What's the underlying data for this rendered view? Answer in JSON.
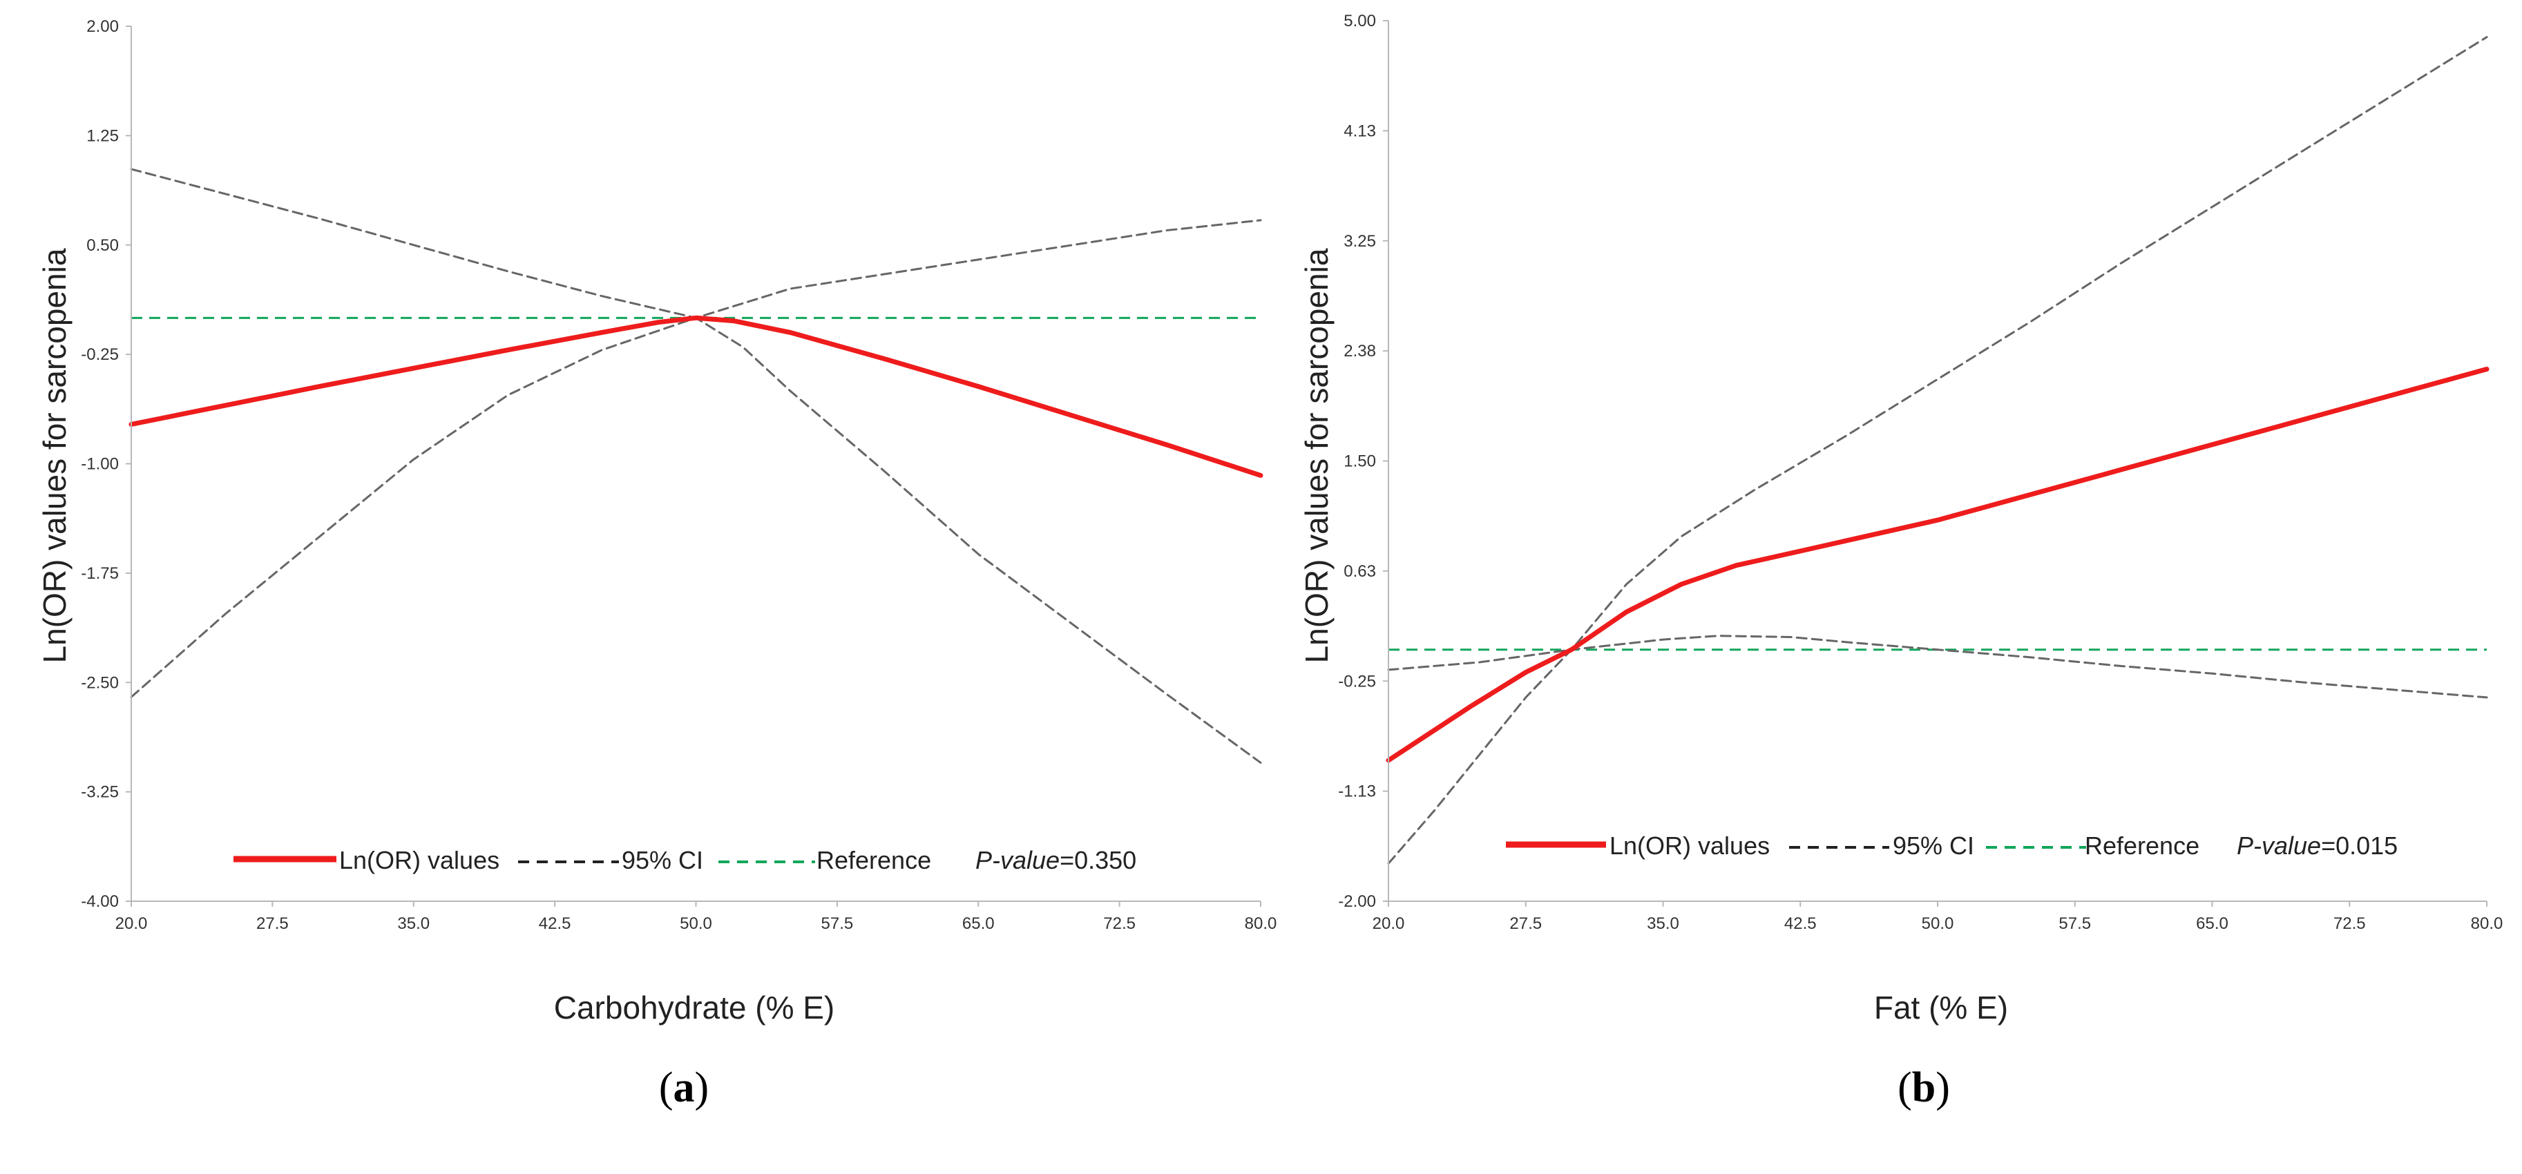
{
  "chart_data": [
    {
      "type": "line",
      "panel_label": "a",
      "xlabel": "Carbohydrate (% E)",
      "ylabel": "Ln(OR) values for sarcopenia",
      "xlim": [
        20.0,
        80.0
      ],
      "ylim": [
        -4.0,
        2.0
      ],
      "x_ticks": [
        "20.0",
        "27.5",
        "35.0",
        "42.5",
        "50.0",
        "57.5",
        "65.0",
        "72.5",
        "80.0"
      ],
      "y_ticks": [
        "2.00",
        "1.25",
        "0.50",
        "-0.25",
        "-1.00",
        "-1.75",
        "-2.50",
        "-3.25",
        "-4.00"
      ],
      "y_tick_values": [
        2.0,
        1.25,
        0.5,
        -0.25,
        -1.0,
        -1.75,
        -2.5,
        -3.25,
        -4.0
      ],
      "reference": 0.0,
      "series": [
        {
          "name": "Ln(OR) values",
          "color": "#ee1c1c",
          "x": [
            20,
            30,
            40,
            45,
            48,
            50,
            52,
            55,
            60,
            65,
            70,
            75,
            80
          ],
          "y": [
            -0.73,
            -0.47,
            -0.22,
            -0.1,
            -0.03,
            0.0,
            -0.02,
            -0.1,
            -0.28,
            -0.47,
            -0.67,
            -0.87,
            -1.08
          ]
        },
        {
          "name": "95% CI upper",
          "color": "#666666",
          "x": [
            20,
            25,
            30,
            35,
            40,
            45,
            50,
            52.5,
            55,
            60,
            65,
            70,
            75,
            80
          ],
          "y": [
            1.02,
            0.85,
            0.68,
            0.5,
            0.32,
            0.15,
            0.0,
            0.1,
            0.2,
            0.3,
            0.4,
            0.5,
            0.6,
            0.67
          ]
        },
        {
          "name": "95% CI lower",
          "color": "#666666",
          "x": [
            20,
            25,
            30,
            35,
            40,
            45,
            50,
            52.5,
            55,
            60,
            65,
            70,
            75,
            80
          ],
          "y": [
            -2.6,
            -2.03,
            -1.5,
            -0.97,
            -0.53,
            -0.22,
            0.0,
            -0.2,
            -0.5,
            -1.05,
            -1.62,
            -2.1,
            -2.58,
            -3.05
          ]
        }
      ],
      "legend": {
        "items": [
          "Ln(OR) values",
          "95% CI",
          "Reference"
        ],
        "pvalue_label": "P-value",
        "pvalue": "=0.350"
      }
    },
    {
      "type": "line",
      "panel_label": "b",
      "xlabel": "Fat (% E)",
      "ylabel": "Ln(OR) values for sarcopenia",
      "xlim": [
        20.0,
        80.0
      ],
      "ylim": [
        -2.0,
        5.0
      ],
      "x_ticks": [
        "20.0",
        "27.5",
        "35.0",
        "42.5",
        "50.0",
        "57.5",
        "65.0",
        "72.5",
        "80.0"
      ],
      "y_ticks": [
        "5.00",
        "4.13",
        "3.25",
        "2.38",
        "1.50",
        "0.63",
        "-0.25",
        "-1.13",
        "-2.00"
      ],
      "y_tick_values": [
        5.0,
        4.125,
        3.25,
        2.375,
        1.5,
        0.625,
        -0.25,
        -1.125,
        -2.0
      ],
      "reference": 0.0,
      "series": [
        {
          "name": "Ln(OR) values",
          "color": "#ee1c1c",
          "x": [
            20,
            24.5,
            27.5,
            30,
            33,
            36,
            39,
            43,
            50,
            60,
            70,
            80
          ],
          "y": [
            -0.88,
            -0.45,
            -0.18,
            0.0,
            0.3,
            0.52,
            0.67,
            0.8,
            1.03,
            1.43,
            1.83,
            2.23
          ]
        },
        {
          "name": "95% CI upper",
          "color": "#666666",
          "x": [
            20,
            22.5,
            25,
            27.5,
            30,
            33,
            36,
            40,
            45,
            50,
            55,
            60,
            65,
            70,
            75,
            80
          ],
          "y": [
            -1.7,
            -1.28,
            -0.83,
            -0.38,
            0.0,
            0.52,
            0.9,
            1.27,
            1.7,
            2.15,
            2.6,
            3.07,
            3.52,
            3.97,
            4.42,
            4.87
          ]
        },
        {
          "name": "95% CI lower",
          "color": "#666666",
          "x": [
            20,
            25,
            30,
            35,
            38,
            42,
            45,
            50,
            55,
            60,
            65,
            70,
            75,
            80
          ],
          "y": [
            -0.16,
            -0.1,
            0.0,
            0.08,
            0.11,
            0.1,
            0.06,
            0.0,
            -0.06,
            -0.13,
            -0.19,
            -0.26,
            -0.32,
            -0.38
          ]
        }
      ],
      "legend": {
        "items": [
          "Ln(OR) values",
          "95% CI",
          "Reference"
        ],
        "pvalue_label": "P-value",
        "pvalue": "=0.015"
      }
    }
  ],
  "colors": {
    "lnor": "#ee1c1c",
    "ci": "#666666",
    "reference": "#12a65a",
    "axis": "#b8b8b8"
  }
}
